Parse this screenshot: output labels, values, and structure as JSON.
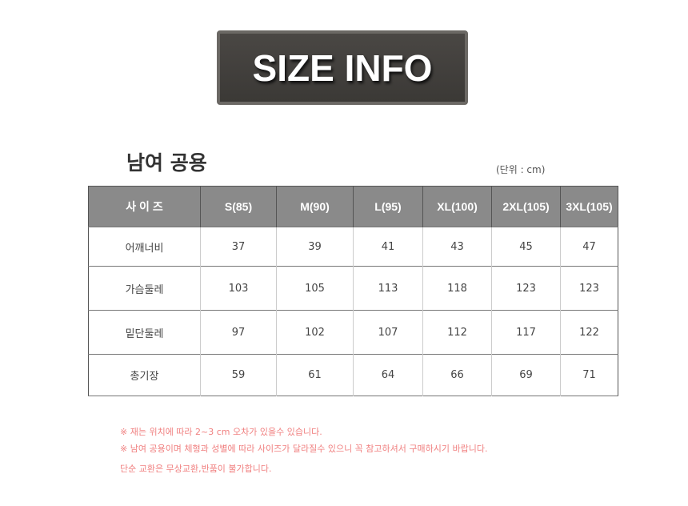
{
  "banner": {
    "text": "SIZE INFO"
  },
  "title": "남여 공용",
  "unit": "(단위 : cm)",
  "table": {
    "headers": [
      "사  이  즈",
      "S(85)",
      "M(90)",
      "L(95)",
      "XL(100)",
      "2XL(105)",
      "3XL(105)"
    ],
    "rows": [
      [
        "어깨너비",
        "37",
        "39",
        "41",
        "43",
        "45",
        "47"
      ],
      [
        "가슴둘레",
        "103",
        "105",
        "113",
        "118",
        "123",
        "123"
      ],
      [
        "밑단둘레",
        "97",
        "102",
        "107",
        "112",
        "117",
        "122"
      ],
      [
        "총기장",
        "59",
        "61",
        "64",
        "66",
        "69",
        "71"
      ]
    ]
  },
  "notes": [
    "※ 재는 위치에 따라 2~3 cm 오차가 있을수 있습니다.",
    "※ 남여 공용이며 체형과 성별에 따라 사이즈가 달라질수 있으니 꼭 참고하셔서 구매하시기 바랍니다.",
    "단순 교환은 무상교환,반품이 불가합니다."
  ],
  "colors": {
    "header_bg": "#8a8a8a",
    "note": "#f08080",
    "banner_bg": "#3b3936"
  }
}
